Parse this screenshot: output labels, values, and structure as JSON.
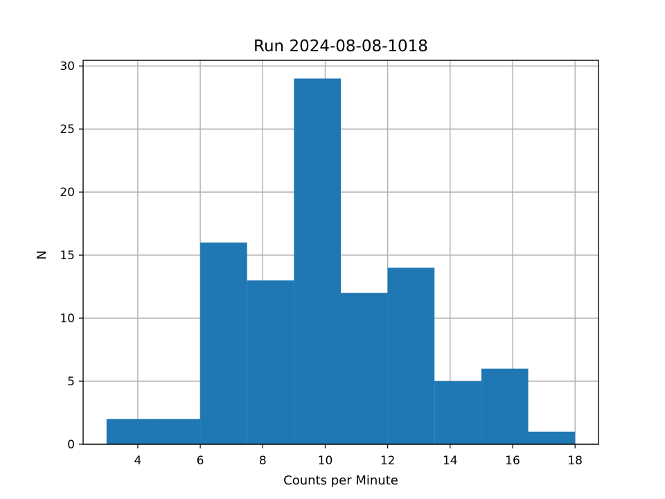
{
  "chart_data": {
    "type": "bar",
    "title": "Run 2024-08-08-1018",
    "xlabel": "Counts per Minute",
    "ylabel": "N",
    "bins": [
      {
        "x0": 3.0,
        "x1": 4.5,
        "count": 2
      },
      {
        "x0": 4.5,
        "x1": 6.0,
        "count": 2
      },
      {
        "x0": 6.0,
        "x1": 7.5,
        "count": 16
      },
      {
        "x0": 7.5,
        "x1": 9.0,
        "count": 13
      },
      {
        "x0": 9.0,
        "x1": 10.5,
        "count": 29
      },
      {
        "x0": 10.5,
        "x1": 12.0,
        "count": 12
      },
      {
        "x0": 12.0,
        "x1": 13.5,
        "count": 14
      },
      {
        "x0": 13.5,
        "x1": 15.0,
        "count": 5
      },
      {
        "x0": 15.0,
        "x1": 16.5,
        "count": 6
      },
      {
        "x0": 16.5,
        "x1": 18.0,
        "count": 1
      }
    ],
    "xlim": [
      2.25,
      18.75
    ],
    "ylim": [
      0,
      30.45
    ],
    "xticks": [
      4,
      6,
      8,
      10,
      12,
      14,
      16,
      18
    ],
    "yticks": [
      0,
      5,
      10,
      15,
      20,
      25,
      30
    ],
    "grid": true,
    "bar_color": "#1f77b4"
  }
}
